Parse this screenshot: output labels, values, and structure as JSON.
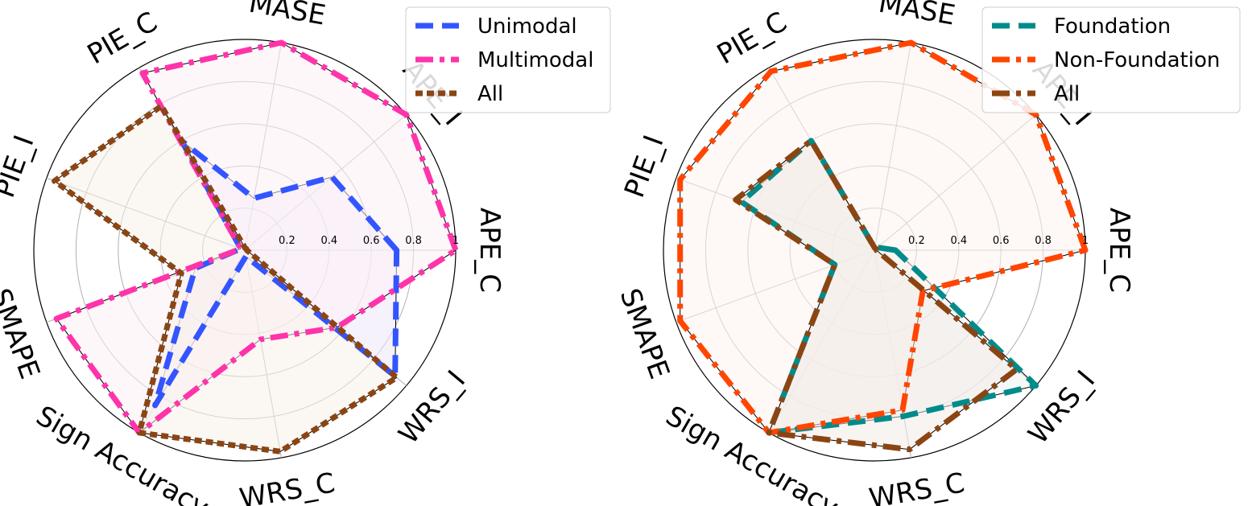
{
  "chart_data": [
    {
      "type": "radar",
      "title": "",
      "categories": [
        "APE_C",
        "APE_I",
        "MASE",
        "PIE_C",
        "PIE_I",
        "SMAPE",
        "Sign Accuracy",
        "WRS_C",
        "WRS_I"
      ],
      "rlim": [
        0,
        1
      ],
      "ticks": [
        "0.2",
        "0.4",
        "0.6",
        "0.8",
        "1"
      ],
      "tick_values": [
        0.2,
        0.4,
        0.6,
        0.8,
        1.0
      ],
      "legend_position": "top-right",
      "series": [
        {
          "name": "Unimodal",
          "color": "#3355ff",
          "style": "dashed",
          "fill": "#ece8fa",
          "values": [
            0.72,
            0.54,
            0.25,
            0.6,
            0.02,
            0.25,
            0.85,
            0.03,
            0.93
          ]
        },
        {
          "name": "Multimodal",
          "color": "#ff33aa",
          "style": "dashdot",
          "fill": "#fdf0f6",
          "values": [
            1.0,
            1.0,
            1.0,
            0.97,
            0.02,
            0.95,
            1.0,
            0.43,
            0.57
          ]
        },
        {
          "name": "All",
          "color": "#8b4513",
          "style": "dotted",
          "fill": "#f7f0ea",
          "values": [
            0.01,
            0.01,
            0.01,
            0.79,
            0.96,
            0.32,
            1.0,
            0.97,
            0.94
          ]
        }
      ]
    },
    {
      "type": "radar",
      "title": "",
      "categories": [
        "APE_C",
        "APE_I",
        "MASE",
        "PIE_C",
        "PIE_I",
        "SMAPE",
        "Sign Accuracy",
        "WRS_C",
        "WRS_I"
      ],
      "rlim": [
        0,
        1
      ],
      "ticks": [
        "0.2",
        "0.4",
        "0.6",
        "0.8",
        "1"
      ],
      "tick_values": [
        0.2,
        0.4,
        0.6,
        0.8,
        1.0
      ],
      "legend_position": "top-right",
      "series": [
        {
          "name": "Foundation",
          "color": "#008b8b",
          "style": "dashed",
          "fill": "#eef2f2",
          "values": [
            0.1,
            0.02,
            0.01,
            0.6,
            0.67,
            0.2,
            1.0,
            0.8,
            1.0
          ]
        },
        {
          "name": "Non-Foundation",
          "color": "#ff4500",
          "style": "dashdot",
          "fill": "#fdf3ef",
          "values": [
            1.0,
            1.0,
            1.0,
            0.98,
            0.98,
            0.98,
            1.0,
            0.77,
            0.3
          ]
        },
        {
          "name": "All",
          "color": "#8b4513",
          "style": "dashdot",
          "fill": "#f3ebe6",
          "values": [
            0.01,
            0.01,
            0.01,
            0.6,
            0.7,
            0.2,
            1.0,
            0.96,
            0.88
          ]
        }
      ]
    }
  ]
}
